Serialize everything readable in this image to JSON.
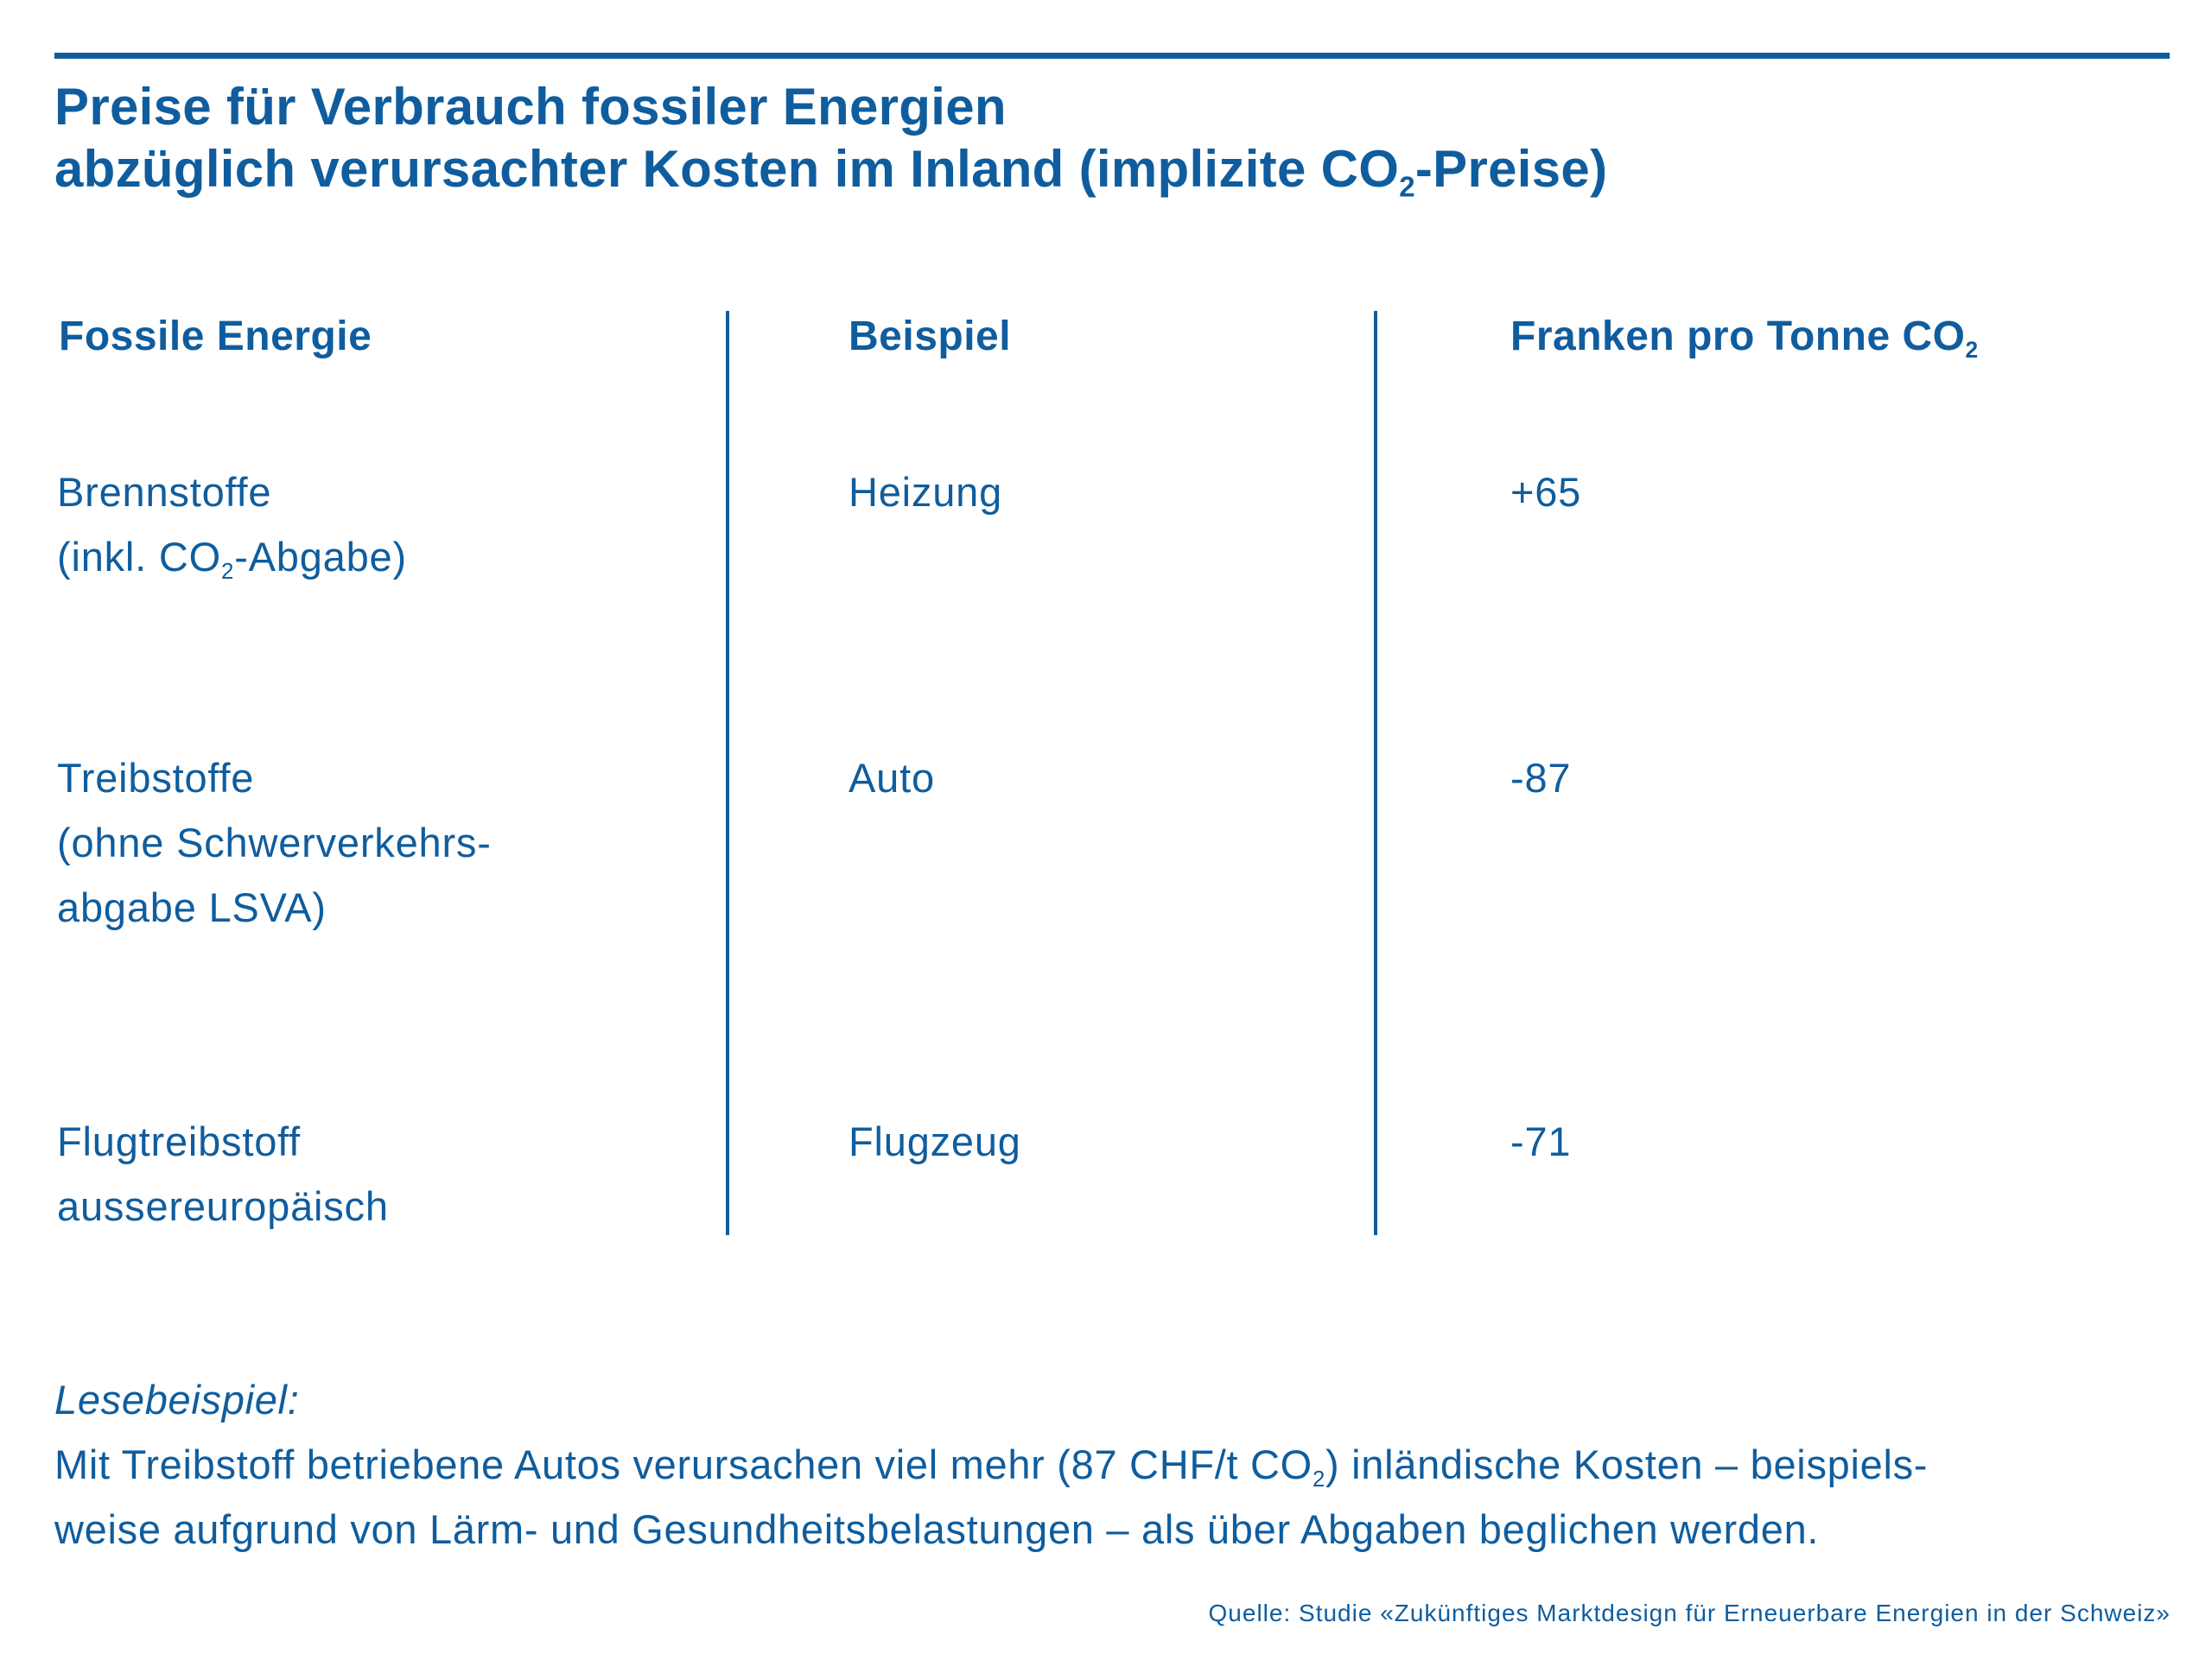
{
  "title": {
    "line1": "Preise für Verbrauch fossiler Energien",
    "line2_prefix": "abzüglich verursachter Kosten im Inland (implizite CO",
    "line2_sub": "2",
    "line2_suffix": "-Preise)"
  },
  "table": {
    "headers": {
      "energy": "Fossile Energie",
      "example": "Beispiel",
      "price_prefix": "Franken pro Tonne CO",
      "price_sub": "2"
    },
    "rows": [
      {
        "energy_line1": "Brennstoffe",
        "energy_line2_prefix": "(inkl. CO",
        "energy_line2_sub": "2",
        "energy_line2_suffix": "-Abgabe)",
        "example": "Heizung",
        "price": "+65"
      },
      {
        "energy_line1": "Treibstoffe",
        "energy_line2": "(ohne Schwerverkehrs-",
        "energy_line3": "abgabe LSVA)",
        "example": "Auto",
        "price": "-87"
      },
      {
        "energy_line1": "Flugtreibstoff",
        "energy_line2": "aussereuropäisch",
        "example": "Flugzeug",
        "price": "-71"
      }
    ]
  },
  "reading_example": {
    "label": "Lesebeispiel:",
    "line1_prefix": "Mit Treibstoff betriebene Autos verursachen viel mehr (87 CHF/t CO",
    "line1_sub": "2",
    "line1_suffix": ") inländische Kosten – beispiels-",
    "line2": "weise aufgrund von Lärm- und Gesundheitsbelastungen – als über Abgaben beglichen werden."
  },
  "source": "Quelle: Studie «Zukünftiges Marktdesign für Erneuerbare Energien in der Schweiz»",
  "colors": {
    "text": "#0f5d9e",
    "background": "#ffffff"
  }
}
